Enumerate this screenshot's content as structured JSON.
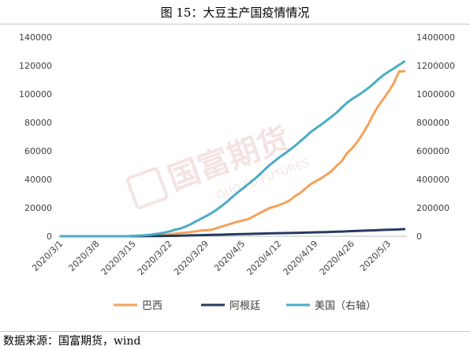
{
  "figure": {
    "title": "图 15：大豆主产国疫情情况",
    "source": "数据来源：国富期货，wind",
    "watermark": {
      "cn": "国富期货",
      "en": "GUO FU FUTURES"
    }
  },
  "chart_data": {
    "type": "line",
    "x": [
      "2020/3/1",
      "2020/3/2",
      "2020/3/3",
      "2020/3/4",
      "2020/3/5",
      "2020/3/6",
      "2020/3/7",
      "2020/3/8",
      "2020/3/9",
      "2020/3/10",
      "2020/3/11",
      "2020/3/12",
      "2020/3/13",
      "2020/3/14",
      "2020/3/15",
      "2020/3/16",
      "2020/3/17",
      "2020/3/18",
      "2020/3/19",
      "2020/3/20",
      "2020/3/21",
      "2020/3/22",
      "2020/3/23",
      "2020/3/24",
      "2020/3/25",
      "2020/3/26",
      "2020/3/27",
      "2020/3/28",
      "2020/3/29",
      "2020/3/30",
      "2020/3/31",
      "2020/4/1",
      "2020/4/2",
      "2020/4/3",
      "2020/4/4",
      "2020/4/5",
      "2020/4/6",
      "2020/4/7",
      "2020/4/8",
      "2020/4/9",
      "2020/4/10",
      "2020/4/11",
      "2020/4/12",
      "2020/4/13",
      "2020/4/14",
      "2020/4/15",
      "2020/4/16",
      "2020/4/17",
      "2020/4/18",
      "2020/4/19",
      "2020/4/20",
      "2020/4/21",
      "2020/4/22",
      "2020/4/23",
      "2020/4/24",
      "2020/4/25",
      "2020/4/26",
      "2020/4/27",
      "2020/4/28",
      "2020/4/29",
      "2020/4/30",
      "2020/5/1",
      "2020/5/2",
      "2020/5/3",
      "2020/5/4",
      "2020/5/5",
      "2020/5/6"
    ],
    "x_ticks": [
      "2020/3/1",
      "2020/3/8",
      "2020/3/15",
      "2020/3/22",
      "2020/3/29",
      "2020/4/5",
      "2020/4/12",
      "2020/4/19",
      "2020/4/26",
      "2020/5/3"
    ],
    "y_left": {
      "min": 0,
      "max": 140000,
      "ticks": [
        "0",
        "20000",
        "40000",
        "60000",
        "80000",
        "100000",
        "120000",
        "140000"
      ]
    },
    "y_right": {
      "min": 0,
      "max": 1400000,
      "ticks": [
        "0",
        "200000",
        "400000",
        "600000",
        "800000",
        "1000000",
        "1200000",
        "1400000"
      ]
    },
    "grid": false,
    "legend_position": "bottom",
    "series": [
      {
        "name": "巴西",
        "axis": "left",
        "color": "#f4a25a",
        "values": [
          0,
          0,
          0,
          0,
          0,
          0,
          0,
          0,
          0,
          0,
          0,
          0,
          0,
          0,
          200,
          250,
          300,
          400,
          600,
          700,
          1000,
          1500,
          1800,
          2200,
          2500,
          3000,
          3500,
          4000,
          4200,
          4600,
          5700,
          6900,
          8000,
          9100,
          10300,
          11100,
          12000,
          14000,
          15900,
          17800,
          19700,
          20700,
          22000,
          23400,
          25300,
          28300,
          30400,
          33600,
          36600,
          38700,
          40700,
          43100,
          45800,
          49500,
          52900,
          58500,
          61900,
          66500,
          72000,
          78100,
          85400,
          91600,
          96600,
          101800,
          107800,
          115900,
          116000
        ]
      },
      {
        "name": "阿根廷",
        "axis": "left",
        "color": "#243c5e",
        "values": [
          0,
          0,
          0,
          0,
          0,
          0,
          0,
          0,
          0,
          0,
          0,
          0,
          0,
          0,
          50,
          60,
          80,
          100,
          130,
          160,
          200,
          260,
          300,
          380,
          500,
          590,
          690,
          750,
          820,
          970,
          1050,
          1130,
          1260,
          1350,
          1450,
          1550,
          1630,
          1700,
          1790,
          1890,
          1980,
          2080,
          2140,
          2210,
          2280,
          2390,
          2440,
          2570,
          2670,
          2760,
          2840,
          2930,
          3030,
          3140,
          3290,
          3430,
          3610,
          3780,
          3890,
          4000,
          4130,
          4290,
          4430,
          4530,
          4680,
          4780,
          5000
        ]
      },
      {
        "name": "美国（右轴）",
        "axis": "right",
        "color": "#4aacc6",
        "values": [
          0,
          0,
          0,
          0,
          0,
          0,
          0,
          0,
          0,
          0,
          0,
          0,
          0,
          0,
          3000,
          4600,
          6400,
          9400,
          14300,
          19600,
          26700,
          35200,
          46500,
          55200,
          68500,
          85500,
          104800,
          124700,
          143100,
          164600,
          188600,
          215400,
          245400,
          277900,
          308900,
          337100,
          366700,
          396200,
          428000,
          462900,
          496500,
          526400,
          555300,
          580600,
          607700,
          636300,
          667800,
          699700,
          732200,
          759100,
          784300,
          811900,
          840000,
          869200,
          905400,
          939000,
          965800,
          988400,
          1012600,
          1039900,
          1069400,
          1103500,
          1133100,
          1158000,
          1180400,
          1204400,
          1228600
        ]
      }
    ]
  }
}
